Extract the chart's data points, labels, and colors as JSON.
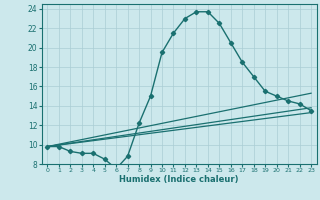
{
  "xlabel": "Humidex (Indice chaleur)",
  "bg_color": "#cce8ec",
  "grid_color": "#aacdd4",
  "line_color": "#1a7070",
  "xlim": [
    -0.5,
    23.5
  ],
  "ylim": [
    8,
    24.5
  ],
  "yticks": [
    8,
    10,
    12,
    14,
    16,
    18,
    20,
    22,
    24
  ],
  "xticks": [
    0,
    1,
    2,
    3,
    4,
    5,
    6,
    7,
    8,
    9,
    10,
    11,
    12,
    13,
    14,
    15,
    16,
    17,
    18,
    19,
    20,
    21,
    22,
    23
  ],
  "line1_x": [
    0,
    1,
    2,
    3,
    4,
    5,
    6,
    7,
    8,
    9,
    10,
    11,
    12,
    13,
    14,
    15,
    16,
    17,
    18,
    19,
    20,
    21,
    22,
    23
  ],
  "line1_y": [
    9.8,
    9.8,
    9.3,
    9.1,
    9.1,
    8.5,
    7.5,
    8.8,
    12.2,
    15.0,
    19.5,
    21.5,
    23.0,
    23.7,
    23.7,
    22.5,
    20.5,
    18.5,
    17.0,
    15.5,
    15.0,
    14.5,
    14.2,
    13.5
  ],
  "line2_x": [
    0,
    23
  ],
  "line2_y": [
    9.8,
    13.3
  ],
  "line3_x": [
    0,
    23
  ],
  "line3_y": [
    9.8,
    13.8
  ],
  "line4_x": [
    0,
    23
  ],
  "line4_y": [
    9.8,
    15.3
  ]
}
